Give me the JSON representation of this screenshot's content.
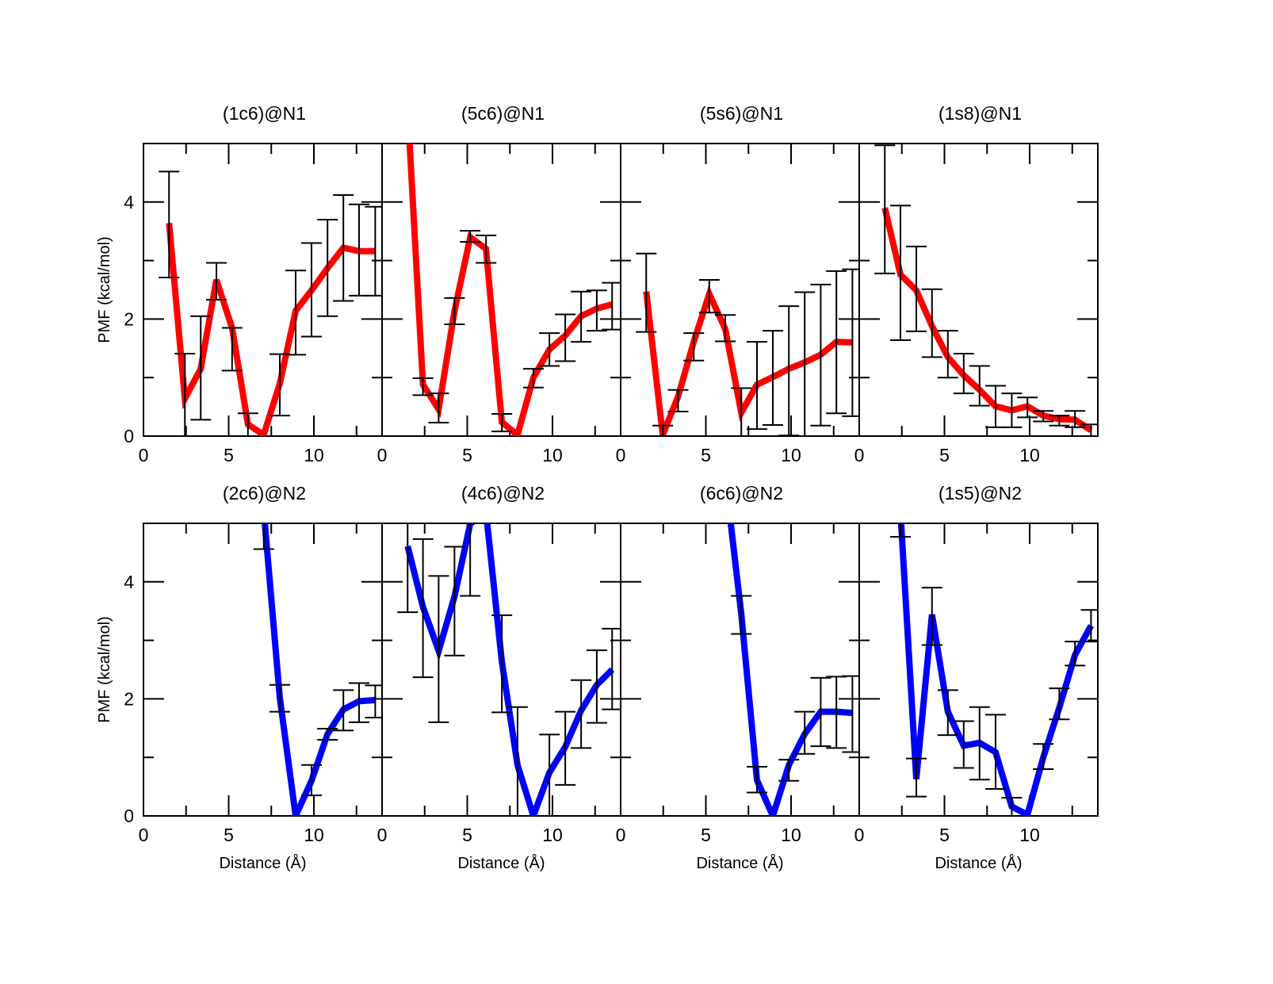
{
  "chart_data": {
    "type": "line",
    "layout": "2x4 panels with shared axes",
    "xlabel": "Distance (Å)",
    "ylabel": "PMF (kcal/mol)",
    "xlim": [
      0,
      14
    ],
    "ylim": [
      0,
      5
    ],
    "xticks": [
      0,
      5,
      10
    ],
    "xtick_labels": [
      "0",
      "5",
      "10"
    ],
    "yticks": [
      0,
      2,
      4
    ],
    "ytick_labels": [
      "0",
      "2",
      "4"
    ],
    "grid": false,
    "error_bars": true,
    "colors": {
      "N1": "#ff0000",
      "N2": "#0000ff"
    },
    "panels": [
      {
        "title": "(1c6)@N1",
        "row": 0,
        "col": 0,
        "color": "#ff0000",
        "x": [
          1.5,
          2.43,
          3.36,
          4.28,
          5.2,
          6.13,
          7.05,
          8.0,
          8.93,
          9.86,
          10.8,
          11.73,
          12.65,
          13.6
        ],
        "y": [
          3.64,
          0.64,
          1.15,
          2.67,
          1.85,
          0.2,
          0.02,
          0.9,
          2.14,
          2.49,
          2.87,
          3.22,
          3.16,
          3.16
        ],
        "err_low": [
          2.71,
          0.0,
          0.28,
          2.33,
          1.12,
          0.0,
          null,
          0.35,
          1.39,
          1.7,
          2.05,
          2.31,
          2.4,
          2.4
        ],
        "err_high": [
          4.52,
          1.41,
          2.05,
          2.96,
          1.85,
          0.39,
          null,
          1.4,
          2.83,
          3.3,
          3.7,
          4.12,
          3.96,
          3.92
        ]
      },
      {
        "title": "(5c6)@N1",
        "row": 0,
        "col": 1,
        "color": "#ff0000",
        "x": [
          1.5,
          2.4,
          3.32,
          4.25,
          5.17,
          6.1,
          7.03,
          7.95,
          8.88,
          9.82,
          10.75,
          11.68,
          12.6,
          13.5
        ],
        "y": [
          5.6,
          0.88,
          0.46,
          2.14,
          3.4,
          3.2,
          0.24,
          0.02,
          1.0,
          1.48,
          1.72,
          2.05,
          2.18,
          2.25
        ],
        "err_low": [
          null,
          0.7,
          0.23,
          1.91,
          3.32,
          2.96,
          0.08,
          null,
          0.83,
          1.2,
          1.28,
          1.61,
          1.8,
          1.82
        ],
        "err_high": [
          null,
          0.99,
          0.73,
          2.36,
          3.51,
          3.43,
          0.38,
          null,
          1.15,
          1.76,
          2.08,
          2.47,
          2.49,
          2.62
        ]
      },
      {
        "title": "(5s6)@N1",
        "row": 0,
        "col": 2,
        "color": "#ff0000",
        "x": [
          1.5,
          2.47,
          3.37,
          4.29,
          5.2,
          6.14,
          7.08,
          8.0,
          8.93,
          9.87,
          10.8,
          11.74,
          12.66,
          13.6
        ],
        "y": [
          2.47,
          0.02,
          0.68,
          1.61,
          2.43,
          1.83,
          0.4,
          0.88,
          1.01,
          1.15,
          1.26,
          1.39,
          1.61,
          1.6
        ],
        "err_low": [
          1.78,
          0.0,
          0.42,
          1.29,
          2.11,
          1.62,
          0.0,
          0.12,
          0.19,
          0.01,
          0.0,
          0.18,
          0.39,
          0.34
        ],
        "err_high": [
          3.12,
          0.18,
          0.79,
          1.76,
          2.67,
          2.07,
          0.82,
          1.61,
          1.8,
          2.22,
          2.46,
          2.59,
          2.82,
          2.85
        ]
      },
      {
        "title": "(1s8)@N1",
        "row": 0,
        "col": 3,
        "color": "#ff0000",
        "x": [
          1.5,
          2.42,
          3.35,
          4.27,
          5.2,
          6.13,
          7.06,
          8.0,
          8.95,
          9.87,
          10.8,
          11.74,
          12.66,
          13.6
        ],
        "y": [
          3.9,
          2.76,
          2.49,
          1.88,
          1.35,
          1.04,
          0.79,
          0.51,
          0.44,
          0.51,
          0.35,
          0.29,
          0.28,
          0.1
        ],
        "err_low": [
          2.78,
          1.64,
          1.79,
          1.35,
          1.0,
          0.73,
          0.52,
          0.15,
          0.15,
          0.32,
          0.25,
          0.18,
          0.15,
          0.0
        ],
        "err_high": [
          4.97,
          3.94,
          3.24,
          2.51,
          1.8,
          1.41,
          1.2,
          0.86,
          0.73,
          0.66,
          0.43,
          0.35,
          0.43,
          0.2
        ]
      },
      {
        "title": "(2c6)@N2",
        "row": 1,
        "col": 0,
        "color": "#0000ff",
        "x": [
          7.06,
          8.0,
          8.93,
          9.86,
          10.8,
          11.73,
          12.65,
          13.6
        ],
        "y": [
          5.2,
          2.02,
          0.0,
          0.6,
          1.4,
          1.82,
          1.96,
          1.98
        ],
        "err_low": [
          4.56,
          1.78,
          null,
          0.35,
          1.3,
          1.46,
          1.6,
          1.68
        ],
        "err_high": [
          5.8,
          2.24,
          null,
          0.87,
          1.49,
          2.15,
          2.27,
          2.23
        ]
      },
      {
        "title": "(4c6)@N2",
        "row": 1,
        "col": 1,
        "color": "#0000ff",
        "x": [
          1.5,
          2.4,
          3.32,
          4.25,
          5.17,
          6.1,
          7.03,
          7.95,
          8.88,
          9.82,
          10.75,
          11.68,
          12.6,
          13.5
        ],
        "y": [
          4.61,
          3.57,
          2.82,
          3.75,
          4.99,
          5.2,
          2.64,
          0.87,
          0.0,
          0.74,
          1.18,
          1.8,
          2.24,
          2.5
        ],
        "err_low": [
          3.48,
          2.37,
          1.6,
          2.74,
          3.76,
          null,
          1.77,
          0.0,
          null,
          0.0,
          0.53,
          1.16,
          1.59,
          1.82
        ],
        "err_high": [
          5.0,
          4.73,
          4.1,
          4.6,
          5.0,
          null,
          3.43,
          1.86,
          null,
          1.39,
          1.78,
          2.32,
          2.83,
          3.2
        ]
      },
      {
        "title": "(6c6)@N2",
        "row": 1,
        "col": 2,
        "color": "#0000ff",
        "x": [
          6.14,
          7.08,
          8.0,
          8.93,
          9.87,
          10.8,
          11.74,
          12.66,
          13.6
        ],
        "y": [
          5.8,
          3.45,
          0.61,
          0.0,
          0.87,
          1.4,
          1.78,
          1.78,
          1.76
        ],
        "err_low": [
          null,
          3.11,
          0.4,
          null,
          0.6,
          1.06,
          1.19,
          1.16,
          1.09
        ],
        "err_high": [
          null,
          3.76,
          0.84,
          null,
          0.96,
          1.78,
          2.36,
          2.38,
          2.39
        ]
      },
      {
        "title": "(1s5)@N2",
        "row": 1,
        "col": 3,
        "color": "#0000ff",
        "x": [
          2.42,
          3.35,
          4.27,
          5.2,
          6.13,
          7.06,
          8.0,
          8.95,
          9.87,
          10.8,
          11.74,
          12.66,
          13.6
        ],
        "y": [
          5.2,
          0.63,
          3.44,
          1.78,
          1.2,
          1.25,
          1.09,
          0.16,
          0.02,
          1.0,
          1.85,
          2.75,
          3.25
        ],
        "err_low": [
          4.77,
          0.33,
          2.92,
          1.38,
          0.82,
          0.62,
          0.46,
          0.0,
          null,
          0.8,
          1.65,
          2.57,
          2.98
        ],
        "err_high": [
          5.6,
          0.98,
          3.9,
          2.15,
          1.62,
          1.86,
          1.73,
          0.31,
          null,
          1.23,
          2.18,
          2.98,
          3.52
        ]
      }
    ]
  }
}
